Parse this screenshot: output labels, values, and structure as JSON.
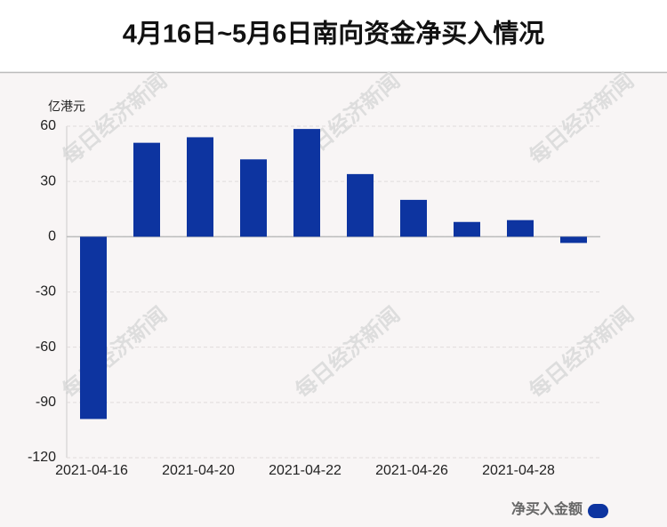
{
  "chart_data": {
    "type": "bar",
    "title": "4月16日~5月6日南向资金净买入情况",
    "y_label": "亿港元",
    "watermark": "每日经济新闻",
    "categories": [
      "2021-04-16",
      null,
      "2021-04-20",
      null,
      "2021-04-22",
      null,
      "2021-04-26",
      null,
      "2021-04-28",
      null
    ],
    "series": [
      {
        "name": "净买入金额",
        "color": "#0d34a0",
        "values": [
          -99,
          51,
          54,
          42,
          58.5,
          34,
          20,
          8,
          9,
          -3.4
        ]
      }
    ],
    "ylim": [
      -120,
      60
    ],
    "yticks": [
      -120,
      -90,
      -60,
      -30,
      0,
      30,
      60
    ],
    "grid": true
  }
}
